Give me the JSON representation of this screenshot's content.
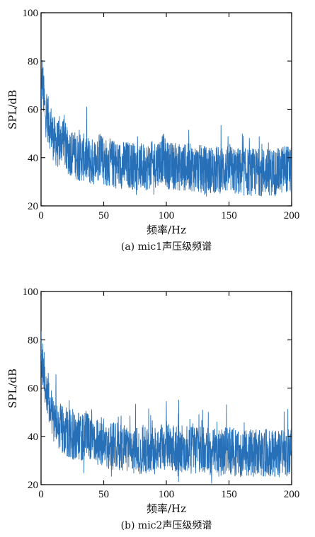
{
  "chart_data": [
    {
      "type": "line",
      "caption": "(a) mic1声压级频谱",
      "xlabel": "频率/Hz",
      "ylabel": "SPL/dB",
      "xlim": [
        0,
        200
      ],
      "ylim": [
        20,
        100
      ],
      "xticks": [
        0,
        50,
        100,
        150,
        200
      ],
      "yticks": [
        20,
        40,
        60,
        80,
        100
      ],
      "grid": false,
      "line_color": "#2770b8",
      "series": [
        {
          "x": [
            0,
            1,
            2,
            3,
            4,
            6,
            8,
            10,
            12,
            15,
            18,
            20,
            25,
            30,
            35,
            40,
            45,
            48,
            50,
            55,
            60,
            70,
            80,
            90,
            98,
            100,
            110,
            120,
            130,
            140,
            150,
            160,
            170,
            180,
            190,
            195,
            200
          ],
          "y": [
            62,
            74,
            66,
            60,
            58,
            55,
            52,
            48,
            46,
            45,
            50,
            43,
            42,
            40,
            40,
            38,
            39,
            45,
            38,
            38,
            37,
            37,
            36,
            37,
            40,
            37,
            36,
            36,
            35,
            35,
            35,
            34,
            34,
            34,
            34,
            36,
            34
          ]
        }
      ]
    },
    {
      "type": "line",
      "caption": "(b) mic2声压级频谱",
      "xlabel": "频率/Hz",
      "ylabel": "SPL/dB",
      "xlim": [
        0,
        200
      ],
      "ylim": [
        20,
        100
      ],
      "xticks": [
        0,
        50,
        100,
        150,
        200
      ],
      "yticks": [
        20,
        40,
        60,
        80,
        100
      ],
      "grid": false,
      "line_color": "#2770b8",
      "series": [
        {
          "x": [
            0,
            1,
            2,
            3,
            4,
            6,
            8,
            10,
            12,
            15,
            20,
            25,
            30,
            35,
            40,
            45,
            50,
            55,
            60,
            70,
            80,
            90,
            100,
            110,
            120,
            130,
            140,
            150,
            160,
            170,
            180,
            190,
            195,
            200
          ],
          "y": [
            75,
            72,
            68,
            64,
            60,
            56,
            52,
            48,
            46,
            44,
            42,
            40,
            40,
            40,
            39,
            38,
            38,
            36,
            36,
            35,
            34,
            34,
            36,
            35,
            34,
            34,
            33,
            34,
            33,
            33,
            33,
            33,
            33,
            34
          ]
        }
      ]
    }
  ]
}
